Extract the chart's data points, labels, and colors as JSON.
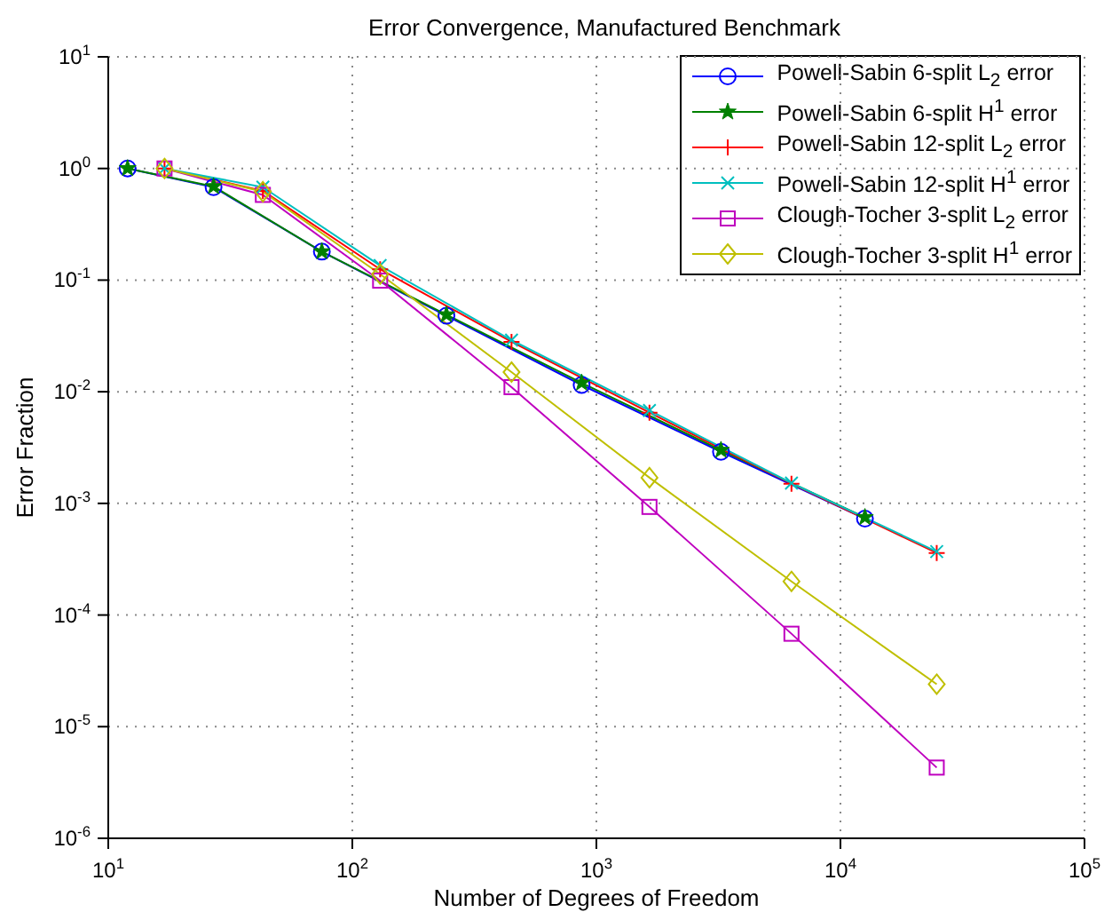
{
  "chart_data": {
    "type": "line",
    "title": "Error Convergence, Manufactured Benchmark",
    "xlabel": "Number of Degrees of Freedom",
    "ylabel": "Error Fraction",
    "log": "xy",
    "grid": true,
    "legend": "top right",
    "line_style": "solid",
    "xlim": [
      10,
      100000
    ],
    "ylim": [
      1e-06,
      10
    ],
    "xticks": [
      {
        "value": 10,
        "label": "10$^{1}$"
      },
      {
        "value": 100,
        "label": "10$^{2}$"
      },
      {
        "value": 1000,
        "label": "10$^{3}$"
      },
      {
        "value": 10000,
        "label": "10$^{4}$"
      },
      {
        "value": 100000,
        "label": "10$^{5}$"
      }
    ],
    "yticks": [
      {
        "value": 1e-06,
        "label": "10$^{-6}$"
      },
      {
        "value": 1e-05,
        "label": "10$^{-5}$"
      },
      {
        "value": 0.0001,
        "label": "10$^{-4}$"
      },
      {
        "value": 0.001,
        "label": "10$^{-3}$"
      },
      {
        "value": 0.01,
        "label": "10$^{-2}$"
      },
      {
        "value": 0.1,
        "label": "10$^{-1}$"
      },
      {
        "value": 1,
        "label": "10$^{0}$"
      },
      {
        "value": 10,
        "label": "10$^{1}$"
      }
    ],
    "series": [
      {
        "name": "Powell-Sabin 6-split L$_{2}$ error",
        "color": "#0000ff",
        "marker": "circle",
        "x": [
          12,
          27,
          75,
          243,
          870,
          3240,
          12600
        ],
        "values": [
          1.0,
          0.68,
          0.18,
          0.048,
          0.0115,
          0.0029,
          0.00073
        ]
      },
      {
        "name": "Powell-Sabin 6-split H$^{1}$ error",
        "color": "#008000",
        "marker": "star",
        "x": [
          12,
          27,
          75,
          243,
          870,
          3240,
          12600
        ],
        "values": [
          1.0,
          0.69,
          0.18,
          0.049,
          0.012,
          0.003,
          0.00075
        ]
      },
      {
        "name": "Powell-Sabin 12-split L$_{2}$ error",
        "color": "#ff0000",
        "marker": "cross",
        "x": [
          17,
          43,
          130,
          449,
          1650,
          6300,
          24800
        ],
        "values": [
          1.0,
          0.63,
          0.125,
          0.028,
          0.0065,
          0.0015,
          0.00036
        ]
      },
      {
        "name": "Powell-Sabin 12-split H$^{1}$ error",
        "color": "#00bfbf",
        "marker": "x",
        "x": [
          17,
          43,
          130,
          449,
          1650,
          6300,
          24800
        ],
        "values": [
          1.0,
          0.68,
          0.135,
          0.029,
          0.0068,
          0.00152,
          0.00037
        ]
      },
      {
        "name": "Clough-Tocher 3-split L$_{2}$ error",
        "color": "#bf00bf",
        "marker": "square",
        "x": [
          17,
          43,
          130,
          449,
          1650,
          6300,
          24800
        ],
        "values": [
          1.0,
          0.58,
          0.099,
          0.011,
          0.00093,
          6.8e-05,
          4.3e-06
        ]
      },
      {
        "name": "Clough-Tocher 3-split H$^{1}$ error",
        "color": "#bfbf00",
        "marker": "diamond",
        "x": [
          17,
          43,
          130,
          449,
          1650,
          6300,
          24800
        ],
        "values": [
          1.0,
          0.62,
          0.113,
          0.015,
          0.0017,
          0.0002,
          2.4e-05
        ]
      }
    ]
  }
}
